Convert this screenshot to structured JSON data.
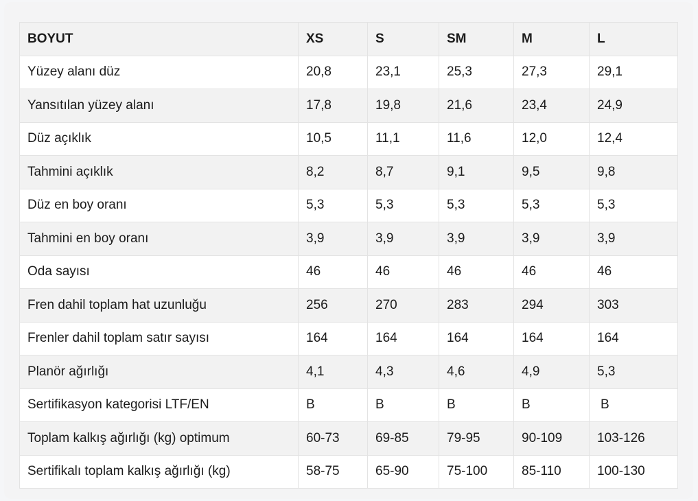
{
  "table": {
    "headers": [
      "BOYUT",
      "XS",
      "S",
      "SM",
      "M",
      "L"
    ],
    "rows": [
      [
        "Yüzey alanı düz",
        "20,8",
        "23,1",
        "25,3",
        "27,3",
        "29,1"
      ],
      [
        "Yansıtılan yüzey alanı",
        "17,8",
        "19,8",
        "21,6",
        "23,4",
        "24,9"
      ],
      [
        "Düz açıklık",
        "10,5",
        "11,1",
        "11,6",
        "12,0",
        "12,4"
      ],
      [
        "Tahmini açıklık",
        "8,2",
        "8,7",
        "9,1",
        "9,5",
        "9,8"
      ],
      [
        "Düz en boy oranı",
        "5,3",
        "5,3",
        "5,3",
        "5,3",
        "5,3"
      ],
      [
        "Tahmini en boy oranı",
        "3,9",
        "3,9",
        "3,9",
        "3,9",
        "3,9"
      ],
      [
        "Oda sayısı",
        "46",
        "46",
        "46",
        "46",
        "46"
      ],
      [
        "Fren dahil toplam hat uzunluğu",
        "256",
        "270",
        "283",
        "294",
        "303"
      ],
      [
        "Frenler dahil toplam satır sayısı",
        "164",
        "164",
        "164",
        "164",
        "164"
      ],
      [
        "Planör ağırlığı",
        "4,1",
        "4,3",
        "4,6",
        "4,9",
        "5,3"
      ],
      [
        "Sertifikasyon kategorisi LTF/EN",
        "B",
        "B",
        "B",
        "B",
        " B"
      ],
      [
        "Toplam kalkış ağırlığı (kg) optimum",
        "60-73",
        "69-85",
        "79-95",
        "90-109",
        "103-126"
      ],
      [
        "Sertifikalı toplam kalkış ağırlığı (kg)",
        "58-75",
        "65-90",
        "75-100",
        "85-110",
        "100-130"
      ]
    ]
  }
}
